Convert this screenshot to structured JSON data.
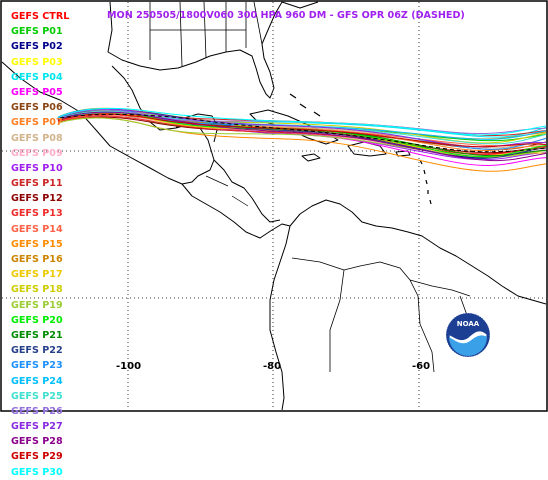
{
  "header": {
    "title": "MON 250505/1800V060  300 HPA 960 DM - GFS OPR 06Z (DASHED)"
  },
  "legend": {
    "items": [
      {
        "label": "GEFS CTRL",
        "color": "#ff0000"
      },
      {
        "label": "GEFS P01",
        "color": "#00cc00"
      },
      {
        "label": "GEFS P02",
        "color": "#00008b"
      },
      {
        "label": "GEFS P03",
        "color": "#ffff00"
      },
      {
        "label": "GEFS P04",
        "color": "#00e5ee"
      },
      {
        "label": "GEFS P05",
        "color": "#ff00ff"
      },
      {
        "label": "GEFS P06",
        "color": "#8b4513"
      },
      {
        "label": "GEFS P07",
        "color": "#ff7f24"
      },
      {
        "label": "GEFS P08",
        "color": "#d2b48c"
      },
      {
        "label": "GEFS P09",
        "color": "#ffaec9"
      },
      {
        "label": "GEFS P10",
        "color": "#a020f0"
      },
      {
        "label": "GEFS P11",
        "color": "#cd2626"
      },
      {
        "label": "GEFS P12",
        "color": "#8b0000"
      },
      {
        "label": "GEFS P13",
        "color": "#ee2c2c"
      },
      {
        "label": "GEFS P14",
        "color": "#ff6347"
      },
      {
        "label": "GEFS P15",
        "color": "#ff8c00"
      },
      {
        "label": "GEFS P16",
        "color": "#cd8500"
      },
      {
        "label": "GEFS P17",
        "color": "#eec900"
      },
      {
        "label": "GEFS P18",
        "color": "#cdcd00"
      },
      {
        "label": "GEFS P19",
        "color": "#9acd32"
      },
      {
        "label": "GEFS P20",
        "color": "#00ee00"
      },
      {
        "label": "GEFS P21",
        "color": "#008b00"
      },
      {
        "label": "GEFS P22",
        "color": "#27408b"
      },
      {
        "label": "GEFS P23",
        "color": "#1e90ff"
      },
      {
        "label": "GEFS P24",
        "color": "#00bfff"
      },
      {
        "label": "GEFS P25",
        "color": "#40e0d0"
      },
      {
        "label": "GEFS P26",
        "color": "#9370db"
      },
      {
        "label": "GEFS P27",
        "color": "#8a2be2"
      },
      {
        "label": "GEFS P28",
        "color": "#8b008b"
      },
      {
        "label": "GEFS P29",
        "color": "#cd0000"
      },
      {
        "label": "GEFS P30",
        "color": "#00ffff"
      }
    ]
  },
  "axes": {
    "longitude_labels": [
      "-100",
      "-80",
      "-60"
    ]
  },
  "logo": {
    "text": "NOAA"
  }
}
